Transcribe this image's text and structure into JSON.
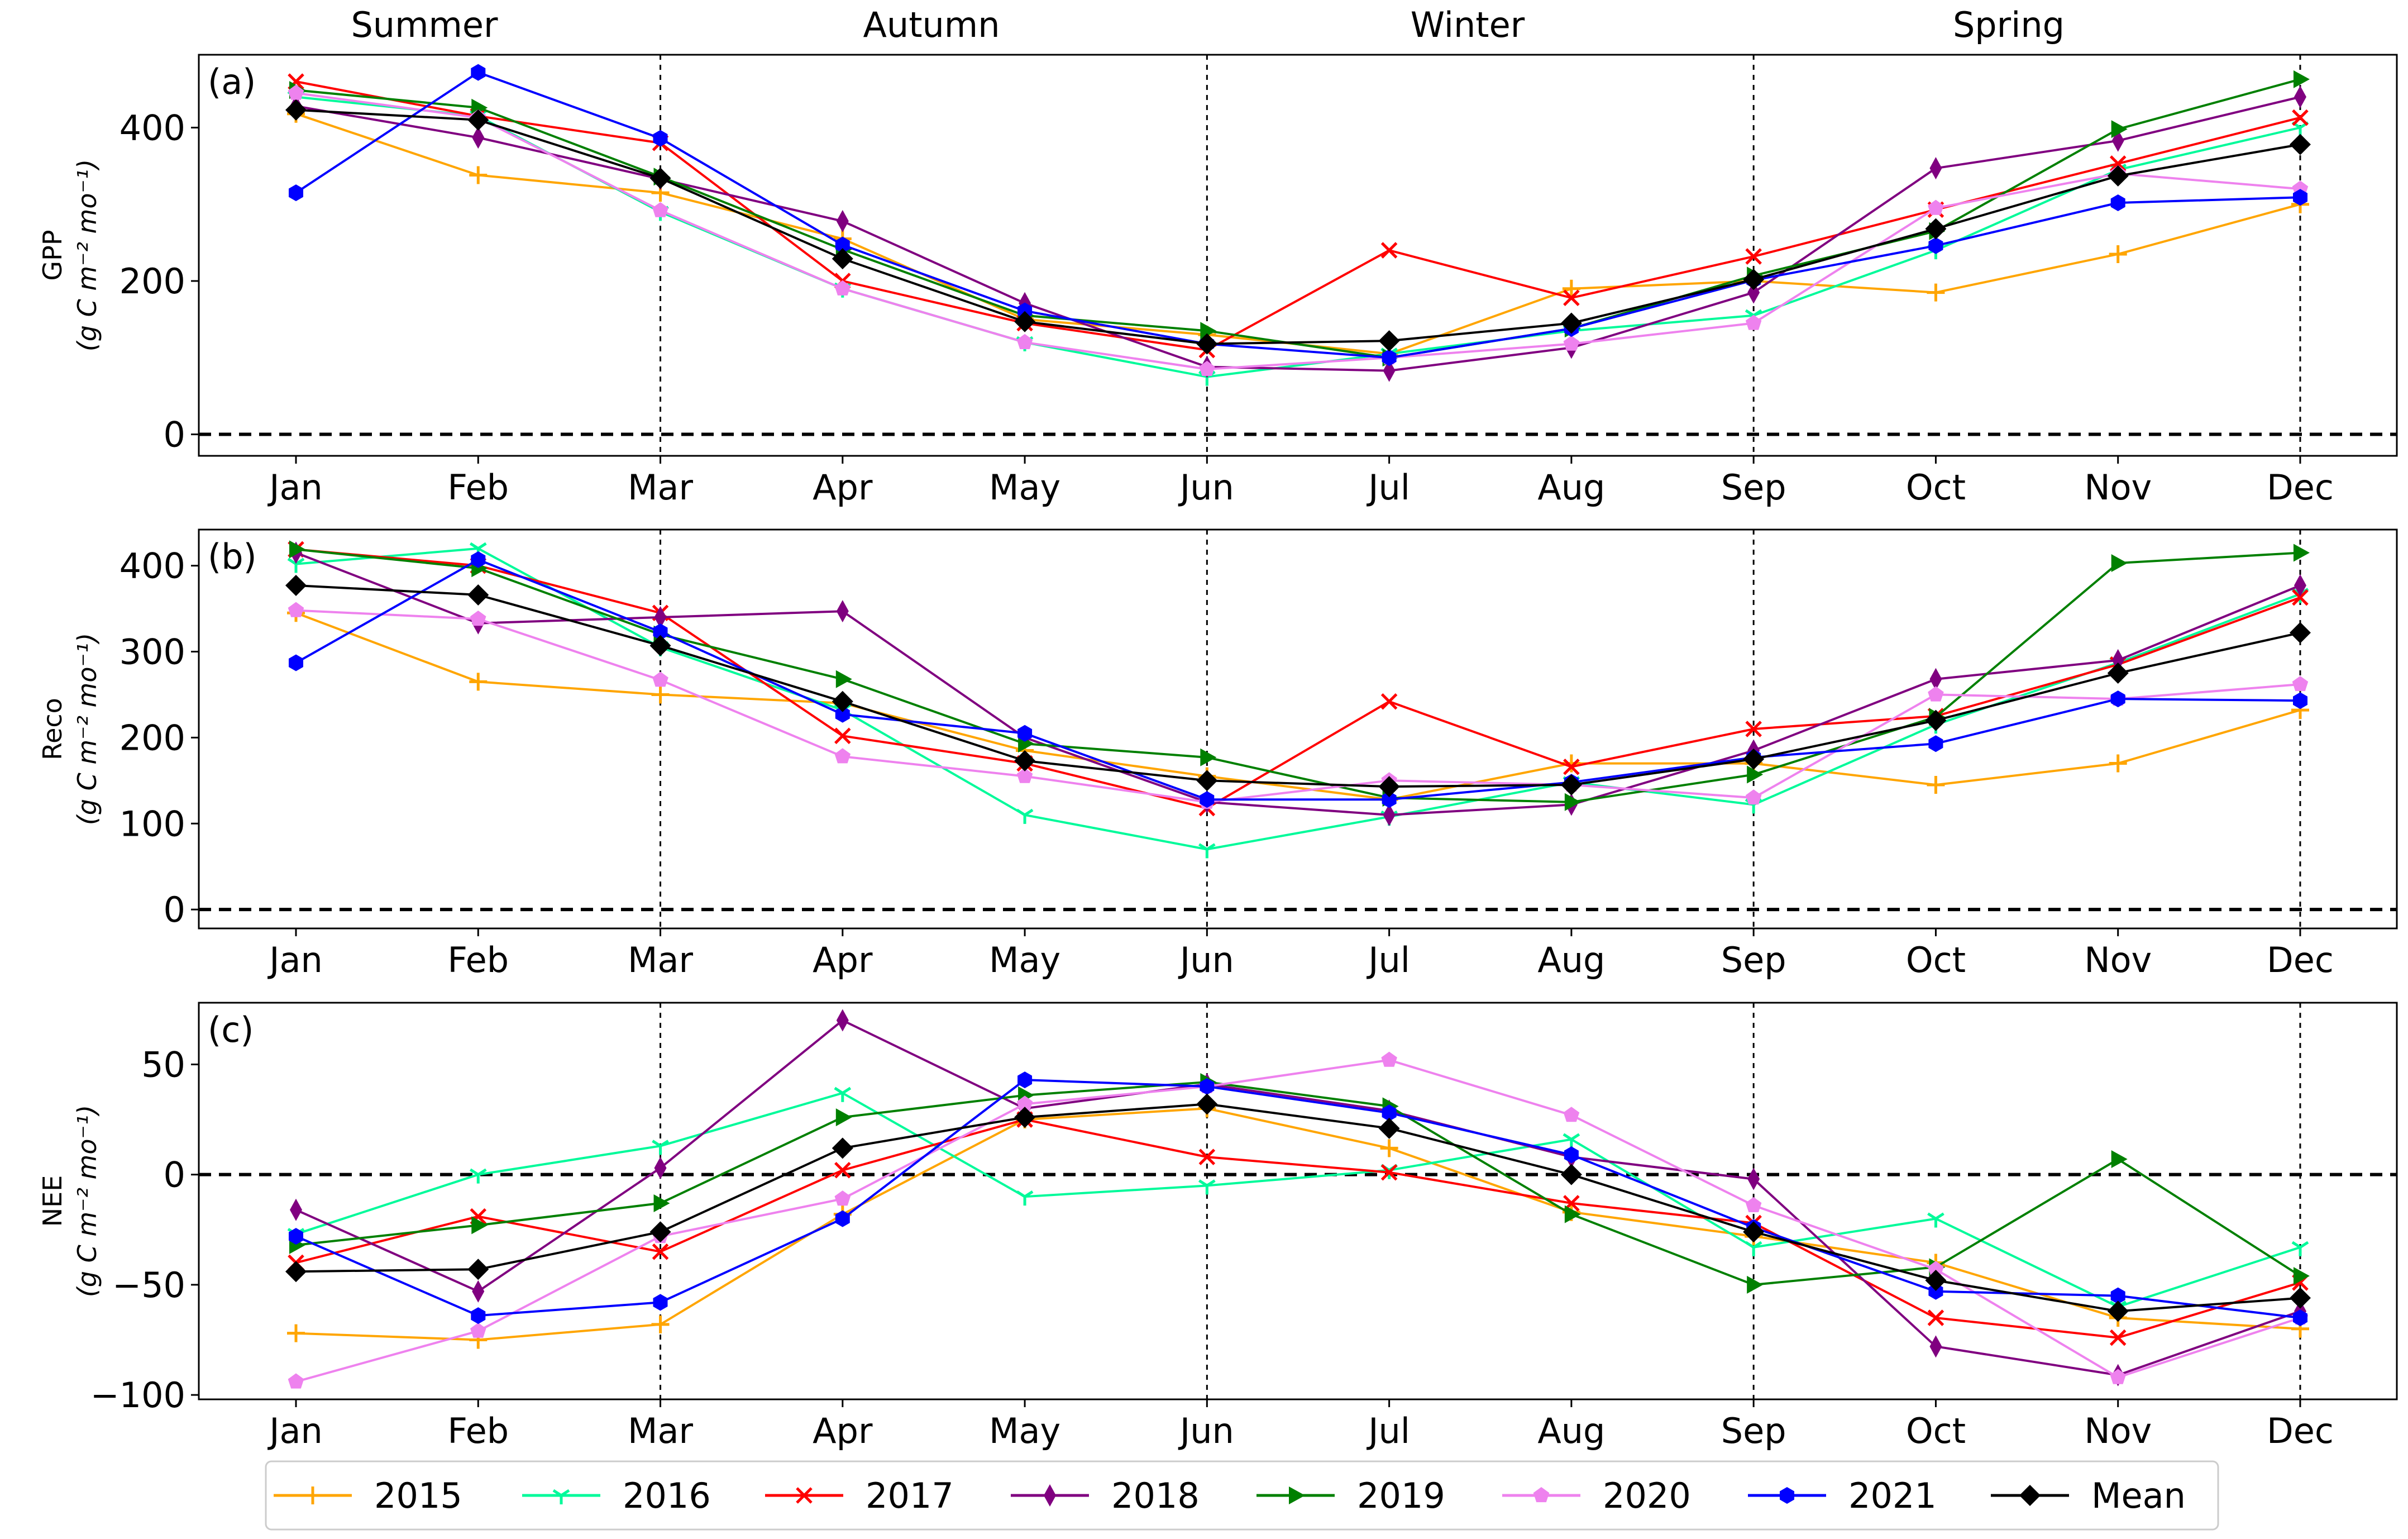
{
  "seasons": [
    "Summer",
    "Autumn",
    "Winter",
    "Spring"
  ],
  "legend": {
    "entries": [
      {
        "label": "2015",
        "color": "#FFA500",
        "marker": "plus"
      },
      {
        "label": "2016",
        "color": "#00FA9A",
        "marker": "tri"
      },
      {
        "label": "2017",
        "color": "#FF0000",
        "marker": "x"
      },
      {
        "label": "2018",
        "color": "#800080",
        "marker": "thin-diamond"
      },
      {
        "label": "2019",
        "color": "#008000",
        "marker": "triangle-right"
      },
      {
        "label": "2020",
        "color": "#EE82EE",
        "marker": "pentagon"
      },
      {
        "label": "2021",
        "color": "#0000FF",
        "marker": "hexagon"
      },
      {
        "label": "Mean",
        "color": "#000000",
        "marker": "diamond"
      }
    ]
  },
  "chart_data": [
    {
      "type": "line",
      "panel_label": "(a)",
      "ylabel_line1": "GPP",
      "ylabel_line2": "(g C m⁻² mo⁻¹)",
      "categories": [
        "Jan",
        "Feb",
        "Mar",
        "Apr",
        "May",
        "Jun",
        "Jul",
        "Aug",
        "Sep",
        "Oct",
        "Nov",
        "Dec"
      ],
      "ylim": [
        -28,
        495
      ],
      "yticks": [
        0,
        200,
        400
      ],
      "ytick_labels": [
        "0",
        "200",
        "400"
      ],
      "series": [
        {
          "name": "2015",
          "values": [
            418,
            338,
            315,
            255,
            150,
            130,
            105,
            190,
            200,
            185,
            235,
            300
          ]
        },
        {
          "name": "2016",
          "values": [
            440,
            415,
            290,
            190,
            120,
            75,
            105,
            135,
            155,
            240,
            345,
            400
          ]
        },
        {
          "name": "2017",
          "values": [
            460,
            415,
            380,
            200,
            145,
            110,
            240,
            178,
            232,
            293,
            353,
            413
          ]
        },
        {
          "name": "2018",
          "values": [
            428,
            387,
            333,
            278,
            171,
            88,
            83,
            113,
            185,
            347,
            383,
            440
          ]
        },
        {
          "name": "2019",
          "values": [
            449,
            426,
            336,
            241,
            155,
            135,
            100,
            138,
            207,
            265,
            398,
            463
          ]
        },
        {
          "name": "2020",
          "values": [
            445,
            413,
            292,
            190,
            120,
            85,
            100,
            118,
            145,
            295,
            340,
            320
          ]
        },
        {
          "name": "2021",
          "values": [
            315,
            472,
            386,
            247,
            161,
            118,
            100,
            138,
            201,
            246,
            302,
            309
          ]
        },
        {
          "name": "Mean",
          "values": [
            423,
            410,
            334,
            229,
            147,
            118,
            122,
            145,
            202,
            268,
            337,
            378
          ]
        }
      ]
    },
    {
      "type": "line",
      "panel_label": "(b)",
      "ylabel_line1": "Reco",
      "ylabel_line2": "(g C m⁻² mo⁻¹)",
      "categories": [
        "Jan",
        "Feb",
        "Mar",
        "Apr",
        "May",
        "Jun",
        "Jul",
        "Aug",
        "Sep",
        "Oct",
        "Nov",
        "Dec"
      ],
      "ylim": [
        -22,
        442
      ],
      "yticks": [
        0,
        100,
        200,
        300,
        400
      ],
      "ytick_labels": [
        "0",
        "100",
        "200",
        "300",
        "400"
      ],
      "series": [
        {
          "name": "2015",
          "values": [
            345,
            265,
            250,
            240,
            185,
            155,
            128,
            170,
            170,
            145,
            170,
            232
          ]
        },
        {
          "name": "2016",
          "values": [
            402,
            420,
            305,
            232,
            110,
            70,
            108,
            148,
            122,
            215,
            287,
            367
          ]
        },
        {
          "name": "2017",
          "values": [
            419,
            400,
            345,
            202,
            170,
            118,
            242,
            166,
            210,
            225,
            285,
            363
          ]
        },
        {
          "name": "2018",
          "values": [
            415,
            333,
            340,
            347,
            200,
            125,
            110,
            122,
            185,
            268,
            290,
            377
          ]
        },
        {
          "name": "2019",
          "values": [
            419,
            397,
            320,
            268,
            193,
            177,
            130,
            125,
            157,
            224,
            403,
            415
          ]
        },
        {
          "name": "2020",
          "values": [
            348,
            338,
            267,
            178,
            155,
            125,
            150,
            145,
            130,
            250,
            245,
            262
          ]
        },
        {
          "name": "2021",
          "values": [
            287,
            407,
            323,
            227,
            205,
            128,
            128,
            148,
            177,
            193,
            245,
            243
          ]
        },
        {
          "name": "Mean",
          "values": [
            377,
            366,
            307,
            242,
            173,
            150,
            143,
            145,
            175,
            220,
            275,
            322
          ]
        }
      ]
    },
    {
      "type": "line",
      "panel_label": "(c)",
      "ylabel_line1": "NEE",
      "ylabel_line2": "(g C m⁻² mo⁻¹)",
      "categories": [
        "Jan",
        "Feb",
        "Mar",
        "Apr",
        "May",
        "Jun",
        "Jul",
        "Aug",
        "Sep",
        "Oct",
        "Nov",
        "Dec"
      ],
      "ylim": [
        -102,
        78
      ],
      "yticks": [
        -100,
        -50,
        0,
        50
      ],
      "ytick_labels": [
        "−100",
        "−50",
        "0",
        "50"
      ],
      "series": [
        {
          "name": "2015",
          "values": [
            -72,
            -75,
            -68,
            -18,
            25,
            30,
            12,
            -17,
            -28,
            -40,
            -65,
            -70
          ]
        },
        {
          "name": "2016",
          "values": [
            -27,
            0,
            13,
            37,
            -10,
            -5,
            2,
            16,
            -33,
            -20,
            -60,
            -33
          ]
        },
        {
          "name": "2017",
          "values": [
            -40,
            -19,
            -35,
            2,
            25,
            8,
            1,
            -13,
            -22,
            -65,
            -74,
            -49
          ]
        },
        {
          "name": "2018",
          "values": [
            -16,
            -53,
            3,
            70,
            30,
            41,
            29,
            8,
            -2,
            -78,
            -91,
            -62
          ]
        },
        {
          "name": "2019",
          "values": [
            -32,
            -23,
            -13,
            26,
            36,
            42,
            31,
            -18,
            -50,
            -42,
            7,
            -46
          ]
        },
        {
          "name": "2020",
          "values": [
            -94,
            -71,
            -28,
            -11,
            32,
            40,
            52,
            27,
            -14,
            -43,
            -92,
            -65
          ]
        },
        {
          "name": "2021",
          "values": [
            -28,
            -64,
            -58,
            -20,
            43,
            40,
            28,
            9,
            -24,
            -53,
            -55,
            -65
          ]
        },
        {
          "name": "Mean",
          "values": [
            -44,
            -43,
            -26,
            12,
            26,
            32,
            21,
            0,
            -26,
            -48,
            -62,
            -56
          ]
        }
      ]
    }
  ]
}
